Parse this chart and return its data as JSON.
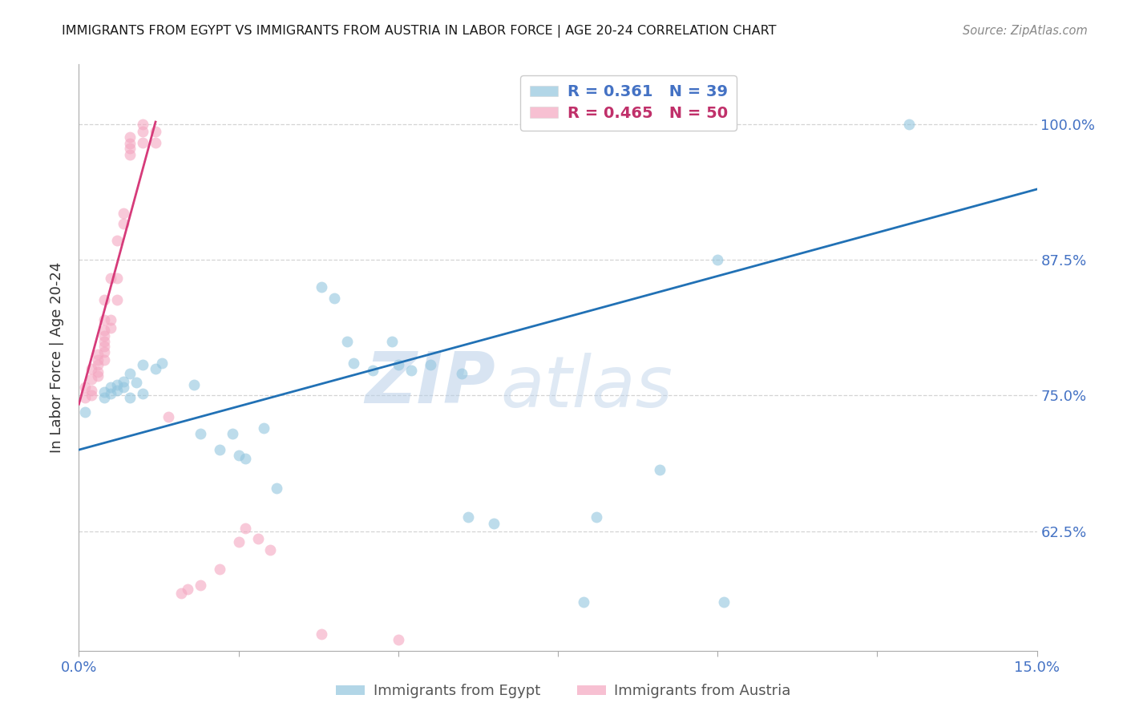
{
  "title": "IMMIGRANTS FROM EGYPT VS IMMIGRANTS FROM AUSTRIA IN LABOR FORCE | AGE 20-24 CORRELATION CHART",
  "source": "Source: ZipAtlas.com",
  "ylabel": "In Labor Force | Age 20-24",
  "y_ticks": [
    0.625,
    0.75,
    0.875,
    1.0
  ],
  "y_tick_labels": [
    "62.5%",
    "75.0%",
    "87.5%",
    "100.0%"
  ],
  "x_lim": [
    0.0,
    0.15
  ],
  "y_lim": [
    0.515,
    1.055
  ],
  "egypt_color": "#92c5de",
  "austria_color": "#f4a6c0",
  "egypt_legend_label": "Immigrants from Egypt",
  "austria_legend_label": "Immigrants from Austria",
  "egypt_scatter": [
    [
      0.001,
      0.735
    ],
    [
      0.004,
      0.753
    ],
    [
      0.004,
      0.748
    ],
    [
      0.005,
      0.752
    ],
    [
      0.005,
      0.758
    ],
    [
      0.006,
      0.76
    ],
    [
      0.006,
      0.755
    ],
    [
      0.007,
      0.763
    ],
    [
      0.007,
      0.758
    ],
    [
      0.008,
      0.77
    ],
    [
      0.008,
      0.748
    ],
    [
      0.009,
      0.762
    ],
    [
      0.01,
      0.778
    ],
    [
      0.01,
      0.752
    ],
    [
      0.012,
      0.775
    ],
    [
      0.013,
      0.78
    ],
    [
      0.018,
      0.76
    ],
    [
      0.019,
      0.715
    ],
    [
      0.022,
      0.7
    ],
    [
      0.024,
      0.715
    ],
    [
      0.025,
      0.695
    ],
    [
      0.026,
      0.692
    ],
    [
      0.029,
      0.72
    ],
    [
      0.031,
      0.665
    ],
    [
      0.038,
      0.85
    ],
    [
      0.04,
      0.84
    ],
    [
      0.042,
      0.8
    ],
    [
      0.043,
      0.78
    ],
    [
      0.046,
      0.773
    ],
    [
      0.049,
      0.8
    ],
    [
      0.05,
      0.778
    ],
    [
      0.052,
      0.773
    ],
    [
      0.055,
      0.778
    ],
    [
      0.06,
      0.77
    ],
    [
      0.061,
      0.638
    ],
    [
      0.065,
      0.632
    ],
    [
      0.079,
      0.56
    ],
    [
      0.081,
      0.638
    ],
    [
      0.091,
      0.682
    ],
    [
      0.1,
      0.875
    ],
    [
      0.101,
      0.56
    ],
    [
      0.13,
      1.0
    ]
  ],
  "austria_scatter": [
    [
      0.001,
      0.758
    ],
    [
      0.001,
      0.748
    ],
    [
      0.002,
      0.775
    ],
    [
      0.002,
      0.765
    ],
    [
      0.002,
      0.755
    ],
    [
      0.002,
      0.75
    ],
    [
      0.003,
      0.788
    ],
    [
      0.003,
      0.783
    ],
    [
      0.003,
      0.778
    ],
    [
      0.003,
      0.772
    ],
    [
      0.003,
      0.768
    ],
    [
      0.004,
      0.838
    ],
    [
      0.004,
      0.82
    ],
    [
      0.004,
      0.81
    ],
    [
      0.004,
      0.805
    ],
    [
      0.004,
      0.8
    ],
    [
      0.004,
      0.795
    ],
    [
      0.004,
      0.79
    ],
    [
      0.004,
      0.783
    ],
    [
      0.005,
      0.858
    ],
    [
      0.005,
      0.82
    ],
    [
      0.005,
      0.812
    ],
    [
      0.006,
      0.893
    ],
    [
      0.006,
      0.858
    ],
    [
      0.006,
      0.838
    ],
    [
      0.007,
      0.918
    ],
    [
      0.007,
      0.908
    ],
    [
      0.008,
      0.988
    ],
    [
      0.008,
      0.982
    ],
    [
      0.008,
      0.978
    ],
    [
      0.008,
      0.972
    ],
    [
      0.01,
      1.0
    ],
    [
      0.01,
      0.993
    ],
    [
      0.01,
      0.983
    ],
    [
      0.012,
      0.993
    ],
    [
      0.012,
      0.983
    ],
    [
      0.014,
      0.73
    ],
    [
      0.016,
      0.568
    ],
    [
      0.017,
      0.572
    ],
    [
      0.019,
      0.575
    ],
    [
      0.022,
      0.59
    ],
    [
      0.025,
      0.615
    ],
    [
      0.026,
      0.628
    ],
    [
      0.028,
      0.618
    ],
    [
      0.03,
      0.608
    ],
    [
      0.038,
      0.53
    ],
    [
      0.05,
      0.525
    ]
  ],
  "egypt_trend_x0": 0.0,
  "egypt_trend_x1": 0.15,
  "egypt_trend_y0": 0.7,
  "egypt_trend_y1": 0.94,
  "austria_trend_x0": 0.0,
  "austria_trend_x1": 0.012,
  "austria_trend_y0": 0.742,
  "austria_trend_y1": 1.002,
  "egypt_trend_color": "#2171b5",
  "austria_trend_color": "#d63b7a",
  "watermark_line1": "ZIP",
  "watermark_line2": "atlas",
  "background_color": "#ffffff",
  "grid_color": "#d0d0d0",
  "tick_color": "#4472c4",
  "title_color": "#1a1a1a",
  "source_color": "#888888",
  "ylabel_color": "#333333"
}
